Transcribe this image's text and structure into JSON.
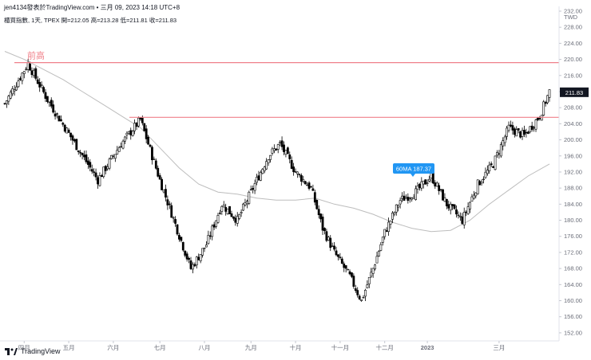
{
  "header": {
    "author_line": "jen4134發表於TradingView.com • 三月 09, 2023 14:18 UTC+8",
    "symbol_line": "櫃買指數, 1天, TPEX  開=212.05  高=213.28  低=211.81  收=211.83"
  },
  "brand": "TradingView",
  "currency": "TWD",
  "colors": {
    "up": "#ffffff",
    "down": "#000000",
    "wick": "#000000",
    "ma": "#bdbdbd",
    "hline": "#f0808a",
    "hline_label": "#f0808a",
    "ma_label_bg": "#2196f3",
    "price_label_bg": "#131722"
  },
  "chart_data": {
    "type": "candlestick",
    "title": "櫃買指數, 1天, TPEX",
    "y_axis": {
      "min": 150,
      "max": 232,
      "ticks": [
        152,
        156,
        160,
        164,
        168,
        172,
        176,
        180,
        184,
        188,
        192,
        196,
        200,
        204,
        208,
        212,
        216,
        220,
        224,
        228,
        232
      ]
    },
    "x_labels": [
      "四月",
      "五月",
      "六月",
      "七月",
      "八月",
      "九月",
      "十月",
      "十一月",
      "十二月",
      "2023",
      "三月"
    ],
    "horizontal_lines": [
      {
        "value": 219.2,
        "label": "前高"
      },
      {
        "value": 205.6,
        "label": ""
      }
    ],
    "ma_label": "60MA 187.37",
    "ma_label_value": 187.37,
    "last_price_label": "211.83",
    "last_price": 211.83,
    "segments": [
      {
        "from": 0,
        "to": 6,
        "start": 209,
        "end": 214
      },
      {
        "from": 6,
        "to": 12,
        "start": 214,
        "end": 219
      },
      {
        "from": 12,
        "to": 22,
        "start": 219,
        "end": 210
      },
      {
        "from": 22,
        "to": 35,
        "start": 210,
        "end": 200
      },
      {
        "from": 35,
        "to": 48,
        "start": 200,
        "end": 190
      },
      {
        "from": 48,
        "to": 60,
        "start": 190,
        "end": 199
      },
      {
        "from": 60,
        "to": 70,
        "start": 199,
        "end": 205
      },
      {
        "from": 70,
        "to": 80,
        "start": 205,
        "end": 190
      },
      {
        "from": 80,
        "to": 88,
        "start": 190,
        "end": 179
      },
      {
        "from": 88,
        "to": 96,
        "start": 179,
        "end": 168
      },
      {
        "from": 96,
        "to": 104,
        "start": 168,
        "end": 174
      },
      {
        "from": 104,
        "to": 112,
        "start": 174,
        "end": 184
      },
      {
        "from": 112,
        "to": 120,
        "start": 184,
        "end": 180
      },
      {
        "from": 120,
        "to": 128,
        "start": 180,
        "end": 188
      },
      {
        "from": 128,
        "to": 136,
        "start": 188,
        "end": 196
      },
      {
        "from": 136,
        "to": 142,
        "start": 196,
        "end": 199
      },
      {
        "from": 142,
        "to": 150,
        "start": 199,
        "end": 192
      },
      {
        "from": 150,
        "to": 158,
        "start": 192,
        "end": 188
      },
      {
        "from": 158,
        "to": 164,
        "start": 188,
        "end": 178
      },
      {
        "from": 164,
        "to": 170,
        "start": 178,
        "end": 172
      },
      {
        "from": 170,
        "to": 178,
        "start": 172,
        "end": 166
      },
      {
        "from": 178,
        "to": 184,
        "start": 166,
        "end": 160
      },
      {
        "from": 184,
        "to": 190,
        "start": 160,
        "end": 168
      },
      {
        "from": 190,
        "to": 196,
        "start": 168,
        "end": 177
      },
      {
        "from": 196,
        "to": 204,
        "start": 177,
        "end": 185
      },
      {
        "from": 204,
        "to": 212,
        "start": 185,
        "end": 187
      },
      {
        "from": 212,
        "to": 220,
        "start": 187,
        "end": 191
      },
      {
        "from": 220,
        "to": 228,
        "start": 191,
        "end": 184
      },
      {
        "from": 228,
        "to": 236,
        "start": 184,
        "end": 180
      },
      {
        "from": 236,
        "to": 244,
        "start": 180,
        "end": 189
      },
      {
        "from": 244,
        "to": 252,
        "start": 189,
        "end": 194
      },
      {
        "from": 252,
        "to": 260,
        "start": 194,
        "end": 203
      },
      {
        "from": 260,
        "to": 268,
        "start": 203,
        "end": 201
      },
      {
        "from": 268,
        "to": 276,
        "start": 201,
        "end": 206
      },
      {
        "from": 276,
        "to": 281,
        "start": 206,
        "end": 212
      }
    ],
    "ma_points": [
      [
        0,
        222
      ],
      [
        10,
        220
      ],
      [
        20,
        217.5
      ],
      [
        30,
        215
      ],
      [
        40,
        212
      ],
      [
        50,
        209
      ],
      [
        60,
        206
      ],
      [
        70,
        203
      ],
      [
        80,
        198
      ],
      [
        90,
        193
      ],
      [
        100,
        189
      ],
      [
        110,
        187
      ],
      [
        120,
        186.5
      ],
      [
        130,
        185.5
      ],
      [
        140,
        185
      ],
      [
        150,
        185
      ],
      [
        160,
        185.5
      ],
      [
        170,
        184
      ],
      [
        180,
        183
      ],
      [
        190,
        181.5
      ],
      [
        200,
        179.5
      ],
      [
        210,
        178
      ],
      [
        220,
        177.2
      ],
      [
        230,
        177.5
      ],
      [
        240,
        180
      ],
      [
        250,
        184
      ],
      [
        260,
        187.5
      ],
      [
        270,
        191
      ],
      [
        281,
        194
      ]
    ],
    "series_count": 282
  }
}
